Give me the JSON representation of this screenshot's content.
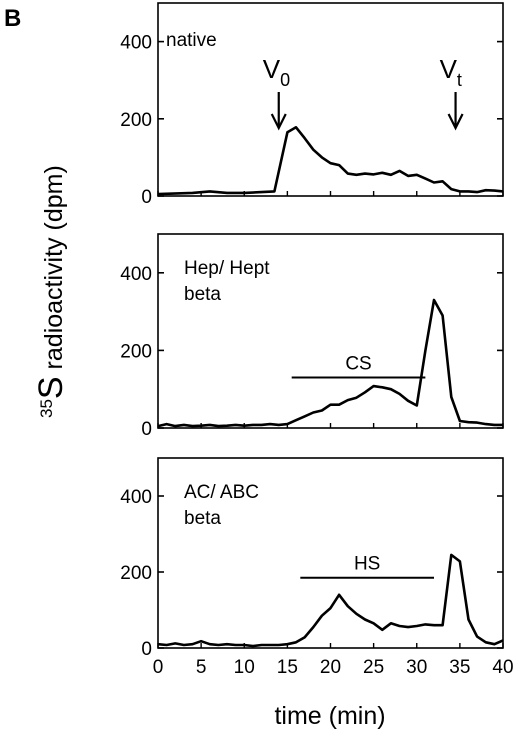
{
  "figure": {
    "letter": "B",
    "ylabel_prefix": "35",
    "ylabel_main": "S",
    "ylabel_rest": " radioactivity (dpm)",
    "xlabel": "time (min)"
  },
  "chart_data": [
    {
      "type": "line",
      "panel_label_lines": [
        "native"
      ],
      "x": [
        0,
        4,
        6,
        8,
        10,
        12,
        13.5,
        15,
        16,
        17,
        18,
        19,
        20,
        21,
        22,
        23,
        24,
        25,
        26,
        27,
        28,
        29,
        30,
        31,
        32,
        33,
        34,
        35,
        36,
        37,
        38,
        39,
        40
      ],
      "values": [
        5,
        8,
        12,
        8,
        8,
        10,
        12,
        165,
        178,
        150,
        120,
        100,
        85,
        80,
        58,
        55,
        58,
        56,
        60,
        55,
        65,
        52,
        55,
        45,
        35,
        38,
        18,
        12,
        12,
        10,
        15,
        14,
        12
      ],
      "xlim": [
        0,
        40
      ],
      "ylim": [
        0,
        500
      ],
      "yticks": [
        0,
        200,
        400
      ],
      "markers": [
        {
          "main": "V",
          "sub": "0",
          "x": 14
        },
        {
          "main": "V",
          "sub": "t",
          "x": 34.5
        }
      ],
      "annotations": []
    },
    {
      "type": "line",
      "panel_label_lines": [
        "Hep/ Hept",
        "beta"
      ],
      "x": [
        0,
        1,
        2,
        3,
        4,
        5,
        6,
        7,
        8,
        9,
        10,
        11,
        12,
        13,
        14,
        15,
        16,
        17,
        18,
        19,
        20,
        21,
        22,
        23,
        24,
        25,
        26,
        27,
        28,
        29,
        30,
        31,
        32,
        33,
        34,
        35,
        36,
        37,
        38,
        39,
        40
      ],
      "values": [
        5,
        10,
        5,
        8,
        5,
        6,
        8,
        5,
        6,
        8,
        6,
        8,
        8,
        10,
        8,
        10,
        20,
        30,
        40,
        45,
        60,
        60,
        72,
        78,
        92,
        108,
        105,
        100,
        88,
        70,
        58,
        200,
        330,
        290,
        80,
        18,
        15,
        14,
        10,
        8,
        8
      ],
      "xlim": [
        0,
        40
      ],
      "ylim": [
        0,
        500
      ],
      "yticks": [
        0,
        200,
        400
      ],
      "markers": [],
      "annotations": [
        {
          "text": "CS",
          "x1": 15.5,
          "x2": 31,
          "y": 130
        }
      ]
    },
    {
      "type": "line",
      "panel_label_lines": [
        "AC/ ABC",
        "beta"
      ],
      "x": [
        0,
        1,
        2,
        3,
        4,
        5,
        6,
        7,
        8,
        9,
        10,
        11,
        12,
        13,
        14,
        15,
        16,
        17,
        18,
        19,
        20,
        21,
        22,
        23,
        24,
        25,
        26,
        27,
        28,
        29,
        30,
        31,
        32,
        33,
        34,
        35,
        36,
        37,
        38,
        39,
        40
      ],
      "values": [
        10,
        8,
        12,
        8,
        10,
        18,
        10,
        8,
        10,
        8,
        8,
        5,
        8,
        8,
        8,
        10,
        15,
        28,
        55,
        85,
        105,
        140,
        110,
        90,
        75,
        65,
        48,
        65,
        58,
        55,
        58,
        62,
        60,
        60,
        245,
        228,
        75,
        30,
        15,
        10,
        20
      ],
      "xlim": [
        0,
        40
      ],
      "ylim": [
        0,
        500
      ],
      "yticks": [
        0,
        200,
        400
      ],
      "xticks": [
        0,
        5,
        10,
        15,
        20,
        25,
        30,
        35,
        40
      ],
      "markers": [],
      "annotations": [
        {
          "text": "HS",
          "x1": 16.5,
          "x2": 32,
          "y": 185
        }
      ]
    }
  ]
}
